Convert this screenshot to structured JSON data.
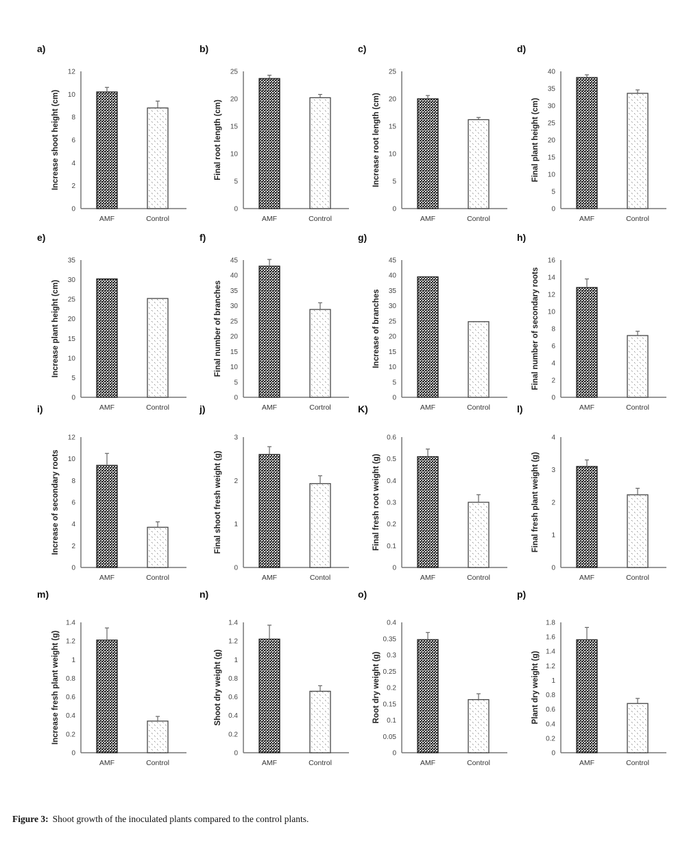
{
  "figure": {
    "caption_label": "Figure 3:",
    "caption_text": "Shoot growth of the inoculated plants compared to the control plants."
  },
  "colors": {
    "amf_fill": "#2b2b2b",
    "control_fill": "#ffffff",
    "axis": "#777777",
    "error_bar": "#666666"
  },
  "chart_data": [
    {
      "panel": "a)",
      "type": "bar",
      "ylabel": "Increase shoot height (cm)",
      "categories": [
        "AMF",
        "Control"
      ],
      "values": [
        10.2,
        8.8
      ],
      "errors": [
        0.4,
        0.6
      ],
      "ylim": [
        0,
        12
      ],
      "yticks": [
        "0",
        "2",
        "4",
        "6",
        "8",
        "10",
        "12"
      ],
      "grid": false
    },
    {
      "panel": "b)",
      "type": "bar",
      "ylabel": "Final root length (cm)",
      "categories": [
        "AMF",
        "Control"
      ],
      "values": [
        23.7,
        20.2
      ],
      "errors": [
        0.6,
        0.6
      ],
      "ylim": [
        0,
        25
      ],
      "yticks": [
        "0",
        "5",
        "10",
        "15",
        "20",
        "25"
      ],
      "grid": false
    },
    {
      "panel": "c)",
      "type": "bar",
      "ylabel": "Increase root length (cm)",
      "categories": [
        "AMF",
        "Control"
      ],
      "values": [
        20.0,
        16.2
      ],
      "errors": [
        0.6,
        0.4
      ],
      "ylim": [
        0,
        25
      ],
      "yticks": [
        "0",
        "5",
        "10",
        "15",
        "20",
        "25"
      ],
      "grid": false
    },
    {
      "panel": "d)",
      "type": "bar",
      "ylabel": "Final plant height (cm)",
      "categories": [
        "AMF",
        "Control"
      ],
      "values": [
        38.2,
        33.6
      ],
      "errors": [
        0.8,
        1.0
      ],
      "ylim": [
        0,
        40
      ],
      "yticks": [
        "0",
        "5",
        "10",
        "15",
        "20",
        "25",
        "30",
        "35",
        "40"
      ],
      "grid": false
    },
    {
      "panel": "e)",
      "type": "bar",
      "ylabel": "Increase plant height (cm)",
      "categories": [
        "AMF",
        "Control"
      ],
      "values": [
        30.2,
        25.2
      ],
      "errors": [
        0,
        0
      ],
      "ylim": [
        0,
        35
      ],
      "yticks": [
        "0",
        "5",
        "10",
        "15",
        "20",
        "25",
        "30",
        "35"
      ],
      "grid": false
    },
    {
      "panel": "f)",
      "type": "bar",
      "ylabel": "Final number of branches",
      "categories": [
        "AMF",
        "Cortrol"
      ],
      "values": [
        43.0,
        28.8
      ],
      "errors": [
        2.2,
        2.2
      ],
      "ylim": [
        0,
        45
      ],
      "yticks": [
        "0",
        "5",
        "10",
        "15",
        "20",
        "25",
        "30",
        "35",
        "40",
        "45"
      ],
      "grid": false
    },
    {
      "panel": "g)",
      "type": "bar",
      "ylabel": "Increase of branches",
      "categories": [
        "AMF",
        "Control"
      ],
      "values": [
        39.5,
        24.8
      ],
      "errors": [
        0,
        0
      ],
      "ylim": [
        0,
        45
      ],
      "yticks": [
        "0",
        "5",
        "10",
        "15",
        "20",
        "25",
        "30",
        "35",
        "40",
        "45"
      ],
      "grid": false
    },
    {
      "panel": "h)",
      "type": "bar",
      "ylabel": "Final number of secondary roots",
      "categories": [
        "AMF",
        "Control"
      ],
      "values": [
        12.8,
        7.2
      ],
      "errors": [
        1.0,
        0.5
      ],
      "ylim": [
        0,
        16
      ],
      "yticks": [
        "0",
        "2",
        "4",
        "6",
        "8",
        "10",
        "12",
        "14",
        "16"
      ],
      "grid": false
    },
    {
      "panel": "i)",
      "type": "bar",
      "ylabel": "Increase of secondary roots",
      "categories": [
        "AMF",
        "Control"
      ],
      "values": [
        9.4,
        3.7
      ],
      "errors": [
        1.1,
        0.5
      ],
      "ylim": [
        0,
        12
      ],
      "yticks": [
        "0",
        "2",
        "4",
        "6",
        "8",
        "10",
        "12"
      ],
      "grid": false
    },
    {
      "panel": "j)",
      "type": "bar",
      "ylabel": "Final shoot fresh weight (g)",
      "categories": [
        "AMF",
        "Contol"
      ],
      "values": [
        2.6,
        1.93
      ],
      "errors": [
        0.18,
        0.18
      ],
      "ylim": [
        0,
        3
      ],
      "yticks": [
        "0",
        "1",
        "2",
        "3"
      ],
      "grid": false
    },
    {
      "panel": "K)",
      "type": "bar",
      "ylabel": "Final fresh root weight (g)",
      "categories": [
        "AMF",
        "Control"
      ],
      "values": [
        0.51,
        0.3
      ],
      "errors": [
        0.035,
        0.035
      ],
      "ylim": [
        0,
        0.6
      ],
      "yticks": [
        "0",
        "0.1",
        "0.2",
        "0.3",
        "0.4",
        "0.5",
        "0.6"
      ],
      "grid": false
    },
    {
      "panel": "l)",
      "type": "bar",
      "ylabel": "Final fresh plant weight (g)",
      "categories": [
        "AMF",
        "Control"
      ],
      "values": [
        3.1,
        2.23
      ],
      "errors": [
        0.2,
        0.2
      ],
      "ylim": [
        0,
        4
      ],
      "yticks": [
        "0",
        "1",
        "2",
        "3",
        "4"
      ],
      "grid": false
    },
    {
      "panel": "m)",
      "type": "bar",
      "ylabel": "Increase fresh plant weight (g)",
      "categories": [
        "AMF",
        "Control"
      ],
      "values": [
        1.21,
        0.34
      ],
      "errors": [
        0.13,
        0.05
      ],
      "ylim": [
        0,
        1.4
      ],
      "yticks": [
        "0",
        "0.2",
        "0.4",
        "0.6",
        "0.8",
        "1",
        "1.2",
        "1.4"
      ],
      "grid": false
    },
    {
      "panel": "n)",
      "type": "bar",
      "ylabel": "Shoot dry weight (g)",
      "categories": [
        "AMF",
        "Control"
      ],
      "values": [
        1.22,
        0.66
      ],
      "errors": [
        0.15,
        0.06
      ],
      "ylim": [
        0,
        1.4
      ],
      "yticks": [
        "0",
        "0.2",
        "0.4",
        "0.6",
        "0.8",
        "1",
        "1.2",
        "1.4"
      ],
      "grid": false
    },
    {
      "panel": "o)",
      "type": "bar",
      "ylabel": "Root dry weight (g)",
      "categories": [
        "AMF",
        "Control"
      ],
      "values": [
        0.347,
        0.163
      ],
      "errors": [
        0.022,
        0.018
      ],
      "ylim": [
        0,
        0.4
      ],
      "yticks": [
        "0",
        "0.05",
        "0.1",
        "0.15",
        "0.2",
        "0.25",
        "0.3",
        "0.35",
        "0.4"
      ],
      "grid": false
    },
    {
      "panel": "p)",
      "type": "bar",
      "ylabel": "Plant dry weight (g)",
      "categories": [
        "AMF",
        "Control"
      ],
      "values": [
        1.56,
        0.68
      ],
      "errors": [
        0.17,
        0.07
      ],
      "ylim": [
        0,
        1.8
      ],
      "yticks": [
        "0",
        "0.2",
        "0.4",
        "0.6",
        "0.8",
        "1",
        "1.2",
        "1.4",
        "1.6",
        "1.8"
      ],
      "grid": false
    }
  ]
}
